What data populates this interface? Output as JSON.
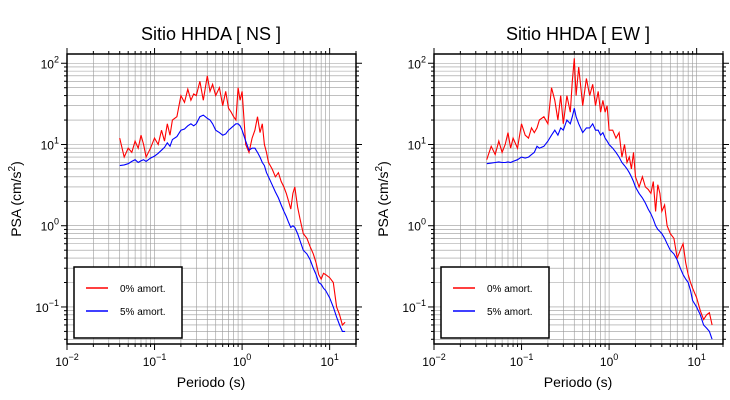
{
  "colors": {
    "red": "#ff0000",
    "blue": "#0000ff",
    "grid": "#9a9a9a",
    "frame": "#000000"
  },
  "chart_data": [
    {
      "type": "line",
      "title": "Sitio HHDA [ NS ]",
      "xlabel": "Periodo (s)",
      "ylabel_base": "PSA (cm/s",
      "ylabel_sup": "2",
      "ylabel_tail": ")",
      "xscale": "log",
      "yscale": "log",
      "xlim": [
        0.01,
        20
      ],
      "ylim": [
        0.035,
        130
      ],
      "grid": true,
      "legend_placement": "bottom-left",
      "x_ticks": [
        {
          "v": 0.01,
          "base": "10",
          "exp": "−2"
        },
        {
          "v": 0.1,
          "base": "10",
          "exp": "−1"
        },
        {
          "v": 1,
          "base": "10",
          "exp": "0"
        },
        {
          "v": 10,
          "base": "10",
          "exp": "1"
        }
      ],
      "y_ticks": [
        {
          "v": 0.1,
          "base": "10",
          "exp": "−1"
        },
        {
          "v": 1,
          "base": "10",
          "exp": "0"
        },
        {
          "v": 10,
          "base": "10",
          "exp": "1"
        },
        {
          "v": 100,
          "base": "10",
          "exp": "2"
        }
      ],
      "series": [
        {
          "name": "0% amort.",
          "color": "#ff0000",
          "x": [
            0.04,
            0.045,
            0.05,
            0.055,
            0.06,
            0.065,
            0.07,
            0.075,
            0.08,
            0.09,
            0.1,
            0.11,
            0.12,
            0.13,
            0.14,
            0.15,
            0.16,
            0.18,
            0.2,
            0.22,
            0.24,
            0.26,
            0.28,
            0.3,
            0.33,
            0.36,
            0.4,
            0.43,
            0.46,
            0.5,
            0.55,
            0.6,
            0.65,
            0.7,
            0.75,
            0.8,
            0.85,
            0.9,
            0.95,
            1.0,
            1.1,
            1.2,
            1.3,
            1.4,
            1.5,
            1.6,
            1.7,
            1.8,
            1.9,
            2.0,
            2.2,
            2.4,
            2.6,
            2.8,
            3.0,
            3.2,
            3.4,
            3.6,
            3.8,
            4.0,
            4.3,
            4.6,
            5.0,
            5.5,
            6.0,
            6.5,
            7.0,
            7.5,
            8.0,
            8.5,
            9.0,
            10,
            11,
            12,
            13,
            14,
            15
          ],
          "y": [
            12,
            7,
            9,
            8,
            11,
            9,
            13,
            10,
            7,
            9,
            12,
            10,
            15,
            11,
            18,
            13,
            20,
            22,
            40,
            33,
            48,
            35,
            42,
            40,
            60,
            35,
            70,
            45,
            55,
            40,
            50,
            30,
            45,
            28,
            25,
            22,
            20,
            50,
            35,
            45,
            10,
            8,
            12,
            15,
            22,
            14,
            18,
            10,
            8,
            6,
            5,
            4,
            4.5,
            3.5,
            3,
            2.5,
            2,
            1.6,
            2.5,
            3.0,
            1.7,
            1.2,
            0.8,
            0.7,
            0.55,
            0.45,
            0.35,
            0.25,
            0.22,
            0.26,
            0.25,
            0.23,
            0.2,
            0.1,
            0.08,
            0.06,
            0.065
          ]
        },
        {
          "name": "5% amort.",
          "color": "#0000ff",
          "x": [
            0.04,
            0.045,
            0.05,
            0.055,
            0.06,
            0.065,
            0.07,
            0.075,
            0.08,
            0.09,
            0.1,
            0.11,
            0.12,
            0.13,
            0.14,
            0.15,
            0.16,
            0.18,
            0.2,
            0.22,
            0.24,
            0.26,
            0.28,
            0.3,
            0.33,
            0.36,
            0.4,
            0.43,
            0.46,
            0.5,
            0.55,
            0.6,
            0.65,
            0.7,
            0.75,
            0.8,
            0.85,
            0.9,
            0.95,
            1.0,
            1.1,
            1.2,
            1.3,
            1.4,
            1.5,
            1.6,
            1.7,
            1.8,
            1.9,
            2.0,
            2.2,
            2.4,
            2.6,
            2.8,
            3.0,
            3.2,
            3.4,
            3.6,
            3.8,
            4.0,
            4.3,
            4.6,
            5.0,
            5.5,
            6.0,
            6.5,
            7.0,
            7.5,
            8.0,
            8.5,
            9.0,
            10,
            11,
            12,
            13,
            14,
            15
          ],
          "y": [
            5.5,
            5.6,
            5.8,
            6.2,
            6.5,
            6.0,
            6.3,
            6.5,
            6.2,
            6.8,
            7.2,
            7.8,
            8.5,
            9.2,
            10.5,
            9.5,
            11.5,
            12.5,
            15,
            15.5,
            17,
            18,
            17,
            18,
            22,
            23,
            21,
            20,
            18,
            15,
            14,
            13,
            13.5,
            15,
            16,
            17,
            18,
            18,
            17,
            15,
            11,
            8.5,
            9,
            9,
            8,
            7,
            6,
            5.5,
            4.5,
            4.0,
            3.2,
            2.6,
            2.2,
            1.8,
            1.5,
            1.3,
            1.1,
            0.95,
            1.0,
            0.95,
            0.8,
            0.65,
            0.5,
            0.45,
            0.38,
            0.3,
            0.25,
            0.2,
            0.19,
            0.17,
            0.16,
            0.13,
            0.1,
            0.075,
            0.06,
            0.05,
            0.05
          ]
        }
      ]
    },
    {
      "type": "line",
      "title": "Sitio HHDA [ EW ]",
      "xlabel": "Periodo (s)",
      "ylabel_base": "PSA (cm/s",
      "ylabel_sup": "2",
      "ylabel_tail": ")",
      "xscale": "log",
      "yscale": "log",
      "xlim": [
        0.01,
        20
      ],
      "ylim": [
        0.035,
        130
      ],
      "grid": true,
      "legend_placement": "bottom-left",
      "x_ticks": [
        {
          "v": 0.01,
          "base": "10",
          "exp": "−2"
        },
        {
          "v": 0.1,
          "base": "10",
          "exp": "−1"
        },
        {
          "v": 1,
          "base": "10",
          "exp": "0"
        },
        {
          "v": 10,
          "base": "10",
          "exp": "1"
        }
      ],
      "y_ticks": [
        {
          "v": 0.1,
          "base": "10",
          "exp": "−1"
        },
        {
          "v": 1,
          "base": "10",
          "exp": "0"
        },
        {
          "v": 10,
          "base": "10",
          "exp": "1"
        },
        {
          "v": 100,
          "base": "10",
          "exp": "2"
        }
      ],
      "series": [
        {
          "name": "0% amort.",
          "color": "#ff0000",
          "x": [
            0.04,
            0.045,
            0.05,
            0.055,
            0.06,
            0.065,
            0.07,
            0.075,
            0.08,
            0.09,
            0.1,
            0.11,
            0.12,
            0.13,
            0.14,
            0.15,
            0.16,
            0.18,
            0.2,
            0.22,
            0.24,
            0.26,
            0.28,
            0.3,
            0.33,
            0.36,
            0.38,
            0.4,
            0.42,
            0.45,
            0.5,
            0.55,
            0.6,
            0.65,
            0.7,
            0.75,
            0.8,
            0.85,
            0.9,
            0.95,
            1.0,
            1.1,
            1.2,
            1.3,
            1.4,
            1.5,
            1.6,
            1.7,
            1.8,
            1.9,
            2.0,
            2.2,
            2.4,
            2.6,
            2.8,
            3.0,
            3.2,
            3.4,
            3.6,
            3.8,
            4.0,
            4.3,
            4.6,
            5.0,
            5.5,
            6.0,
            6.5,
            7.0,
            7.5,
            8.0,
            8.5,
            9.0,
            10,
            11,
            12,
            13,
            14,
            15
          ],
          "y": [
            6.5,
            9.5,
            7.5,
            11,
            8,
            10,
            14,
            9,
            12,
            9,
            18,
            13,
            12,
            16,
            14,
            16,
            20,
            22,
            18,
            50,
            35,
            20,
            40,
            18,
            40,
            25,
            60,
            115,
            40,
            90,
            30,
            65,
            40,
            55,
            30,
            45,
            25,
            35,
            25,
            30,
            15,
            15,
            12,
            14,
            7,
            10,
            6,
            7,
            5,
            8,
            4,
            3,
            4,
            3,
            2.8,
            2.5,
            3.5,
            1.5,
            3.2,
            2.5,
            1.5,
            1.8,
            1.0,
            0.8,
            0.7,
            0.4,
            0.5,
            0.6,
            0.35,
            0.25,
            0.2,
            0.17,
            0.13,
            0.09,
            0.07,
            0.08,
            0.085,
            0.06
          ]
        },
        {
          "name": "5% amort.",
          "color": "#0000ff",
          "x": [
            0.04,
            0.045,
            0.05,
            0.055,
            0.06,
            0.065,
            0.07,
            0.075,
            0.08,
            0.09,
            0.1,
            0.11,
            0.12,
            0.13,
            0.14,
            0.15,
            0.16,
            0.18,
            0.2,
            0.22,
            0.24,
            0.26,
            0.28,
            0.3,
            0.33,
            0.36,
            0.38,
            0.4,
            0.42,
            0.45,
            0.5,
            0.55,
            0.6,
            0.65,
            0.7,
            0.75,
            0.8,
            0.85,
            0.9,
            0.95,
            1.0,
            1.1,
            1.2,
            1.3,
            1.4,
            1.5,
            1.6,
            1.7,
            1.8,
            1.9,
            2.0,
            2.2,
            2.4,
            2.6,
            2.8,
            3.0,
            3.2,
            3.4,
            3.6,
            3.8,
            4.0,
            4.3,
            4.6,
            5.0,
            5.5,
            6.0,
            6.5,
            7.0,
            7.5,
            8.0,
            8.5,
            9.0,
            10,
            11,
            12,
            13,
            14,
            15
          ],
          "y": [
            5.8,
            5.9,
            6.0,
            6.1,
            6.0,
            6.0,
            6.1,
            6.0,
            6.2,
            6.5,
            7.0,
            6.8,
            7.0,
            7.5,
            8.0,
            9.5,
            9.0,
            9.5,
            11,
            13,
            15,
            13,
            16,
            15,
            20,
            18,
            22,
            28,
            22,
            18,
            14,
            16,
            16,
            18,
            15,
            15,
            13,
            14,
            12,
            11,
            10,
            9,
            8,
            7,
            6,
            5.5,
            5,
            4.5,
            4,
            3.5,
            3,
            2.5,
            2.2,
            1.9,
            1.6,
            1.4,
            1.2,
            1.0,
            0.9,
            0.85,
            0.8,
            0.7,
            0.6,
            0.5,
            0.45,
            0.38,
            0.3,
            0.25,
            0.22,
            0.2,
            0.16,
            0.12,
            0.1,
            0.08,
            0.06,
            0.055,
            0.05,
            0.04
          ]
        }
      ]
    }
  ]
}
